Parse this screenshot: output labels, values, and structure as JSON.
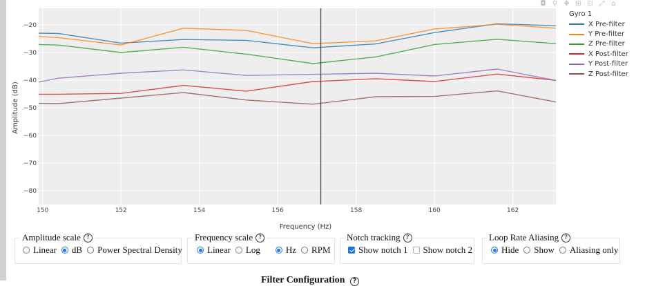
{
  "modebar": {
    "icons": [
      "camera-icon",
      "zoom-icon",
      "pan-icon",
      "zoom-in-icon",
      "zoom-out-icon",
      "autoscale-icon",
      "reset-axes-icon"
    ],
    "glyphs": [
      "◘",
      "⚲",
      "✥",
      "⊞",
      "⊟",
      "⤢",
      "⌂"
    ]
  },
  "chart_data": {
    "type": "line",
    "legend_title": "Gyro 1",
    "xlabel": "Frequency (Hz)",
    "ylabel": "Amplitude (dB)",
    "xlim": [
      149.9,
      163.1
    ],
    "ylim": [
      -85,
      -14
    ],
    "xticks": [
      150,
      152,
      154,
      156,
      158,
      160,
      162
    ],
    "yticks": [
      -20,
      -30,
      -40,
      -50,
      -60,
      -70,
      -80
    ],
    "grid": true,
    "legend_position": "top-right",
    "cursor_x": 157.1,
    "x": [
      149.9,
      150.4,
      152.0,
      153.6,
      155.2,
      156.9,
      158.5,
      160.0,
      161.6,
      163.1
    ],
    "series": [
      {
        "name": "X Pre-filter",
        "color": "#1f77b4",
        "values": [
          -23.0,
          -23.1,
          -26.6,
          -25.3,
          -25.6,
          -28.3,
          -26.9,
          -22.8,
          -19.6,
          -20.3
        ]
      },
      {
        "name": "Y Pre-filter",
        "color": "#ff7f0e",
        "values": [
          -24.2,
          -24.6,
          -27.3,
          -21.2,
          -22.0,
          -26.8,
          -25.8,
          -21.5,
          -19.8,
          -21.2
        ]
      },
      {
        "name": "Z Pre-filter",
        "color": "#2ca02c",
        "values": [
          -27.1,
          -27.3,
          -30.0,
          -28.1,
          -30.6,
          -34.0,
          -31.6,
          -27.1,
          -25.2,
          -26.8
        ]
      },
      {
        "name": "X Post-filter",
        "color": "#d62728",
        "values": [
          -45.1,
          -45.1,
          -44.8,
          -41.9,
          -44.0,
          -40.5,
          -39.5,
          -40.5,
          -37.8,
          -40.1
        ]
      },
      {
        "name": "Y Post-filter",
        "color": "#9467bd",
        "values": [
          -40.7,
          -39.3,
          -37.5,
          -36.3,
          -38.3,
          -37.9,
          -37.5,
          -38.5,
          -36.0,
          -40.1
        ]
      },
      {
        "name": "Z Post-filter",
        "color": "#8c564b",
        "values": [
          -48.4,
          -48.5,
          -46.5,
          -44.5,
          -47.2,
          -48.7,
          -46.0,
          -45.9,
          -43.9,
          -47.9
        ]
      }
    ]
  },
  "controls": {
    "amplitude": {
      "title": "Amplitude scale",
      "help": "?",
      "options": [
        {
          "label": "Linear",
          "checked": false
        },
        {
          "label": "dB",
          "checked": true
        },
        {
          "label": "Power Spectral Density",
          "checked": false
        }
      ]
    },
    "frequency": {
      "title": "Frequency scale",
      "help": "?",
      "options": [
        {
          "label": "Linear",
          "checked": true
        },
        {
          "label": "Log",
          "checked": false
        }
      ],
      "units": [
        {
          "label": "Hz",
          "checked": true
        },
        {
          "label": "RPM",
          "checked": false
        }
      ]
    },
    "notch": {
      "title": "Notch tracking",
      "help": "?",
      "options": [
        {
          "label": "Show notch 1",
          "checked": true
        },
        {
          "label": "Show notch 2",
          "checked": false
        }
      ]
    },
    "aliasing": {
      "title": "Loop Rate Aliasing",
      "help": "?",
      "options": [
        {
          "label": "Hide",
          "checked": true
        },
        {
          "label": "Show",
          "checked": false
        },
        {
          "label": "Aliasing only",
          "checked": false
        }
      ]
    }
  },
  "section": {
    "title": "Filter Configuration",
    "help": "?"
  }
}
